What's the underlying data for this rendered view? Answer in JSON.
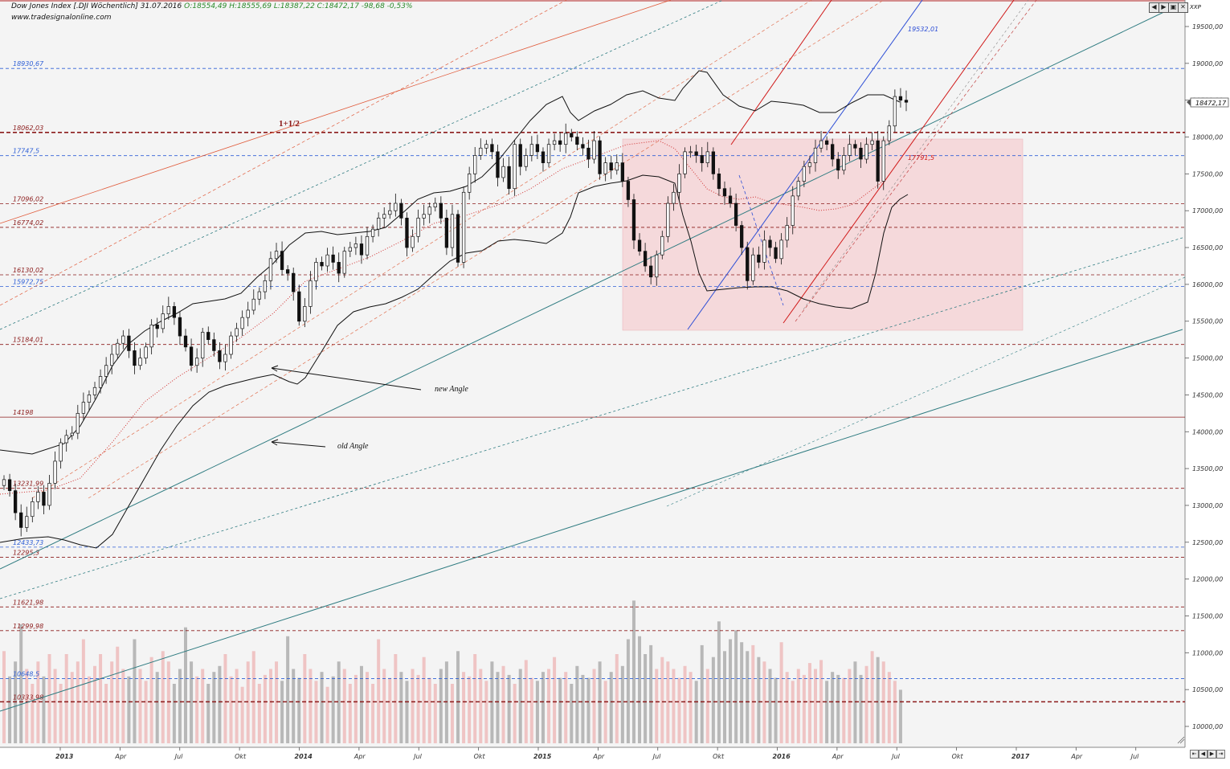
{
  "header": {
    "instrument": "Dow Jones Index [.DJI Wöchentlich] 31.07.2016",
    "ohlc": "O:18554,49 H:18555,69 L:18387,22 C:18472,17 -98,68 -0,53%",
    "website": "www.tradesignalonline.com"
  },
  "window_controls": [
    "◀",
    "▶",
    "▣",
    "✕"
  ],
  "nav_controls": [
    "⇤",
    "◀",
    "▶",
    "⇥"
  ],
  "axis": {
    "currency_label": "XXP",
    "last_price_label": "18472,17"
  },
  "annotations": {
    "fib_label": "1+1/2",
    "new_angle": "new Angle",
    "old_angle": "old Angle",
    "target_blue": "19532,01",
    "target_red": "17791,5"
  },
  "colors": {
    "background": "#f4f4f4",
    "blue_level": "#2e5fd6",
    "red_level": "#8b1a1a",
    "rect_fill": "#f5d0d3",
    "trend_teal": "#2e7b80",
    "volume_gray": "#b8b8b8",
    "volume_pink": "#efc4c4",
    "candle": "#111111"
  },
  "chart_data": {
    "type": "candlestick",
    "title": "Dow Jones Index [.DJI Wöchentlich] 31.07.2016",
    "ylim": [
      9700,
      19950
    ],
    "y_ticks": [
      10000,
      10500,
      11000,
      11500,
      12000,
      12500,
      13000,
      13500,
      14000,
      14500,
      15000,
      15500,
      16000,
      16500,
      17000,
      17500,
      18000,
      18500,
      19000,
      19500
    ],
    "y_tick_labels": [
      "10000,00",
      "10500,00",
      "11000,00",
      "11500,00",
      "12000,00",
      "12500,00",
      "13000,00",
      "13500,00",
      "14000,00",
      "14500,00",
      "15000,00",
      "15500,00",
      "16000,00",
      "16500,00",
      "17000,00",
      "17500,00",
      "18000,00",
      "18500,00",
      "19000,00",
      "19500,00"
    ],
    "x_labels": [
      {
        "label": "2013",
        "date": "2013-01"
      },
      {
        "label": "Apr",
        "date": "2013-04"
      },
      {
        "label": "Jul",
        "date": "2013-07"
      },
      {
        "label": "Okt",
        "date": "2013-10"
      },
      {
        "label": "2014",
        "date": "2014-01"
      },
      {
        "label": "Apr",
        "date": "2014-04"
      },
      {
        "label": "Jul",
        "date": "2014-07"
      },
      {
        "label": "Okt",
        "date": "2014-10"
      },
      {
        "label": "2015",
        "date": "2015-01"
      },
      {
        "label": "Apr",
        "date": "2015-04"
      },
      {
        "label": "Jul",
        "date": "2015-07"
      },
      {
        "label": "Okt",
        "date": "2015-10"
      },
      {
        "label": "2016",
        "date": "2016-01"
      },
      {
        "label": "Apr",
        "date": "2016-04"
      },
      {
        "label": "Jul",
        "date": "2016-07"
      },
      {
        "label": "Okt",
        "date": "2016-10"
      },
      {
        "label": "2017",
        "date": "2017-01"
      },
      {
        "label": "Apr",
        "date": "2017-04"
      },
      {
        "label": "Jul",
        "date": "2017-07"
      }
    ],
    "horizontal_levels": [
      {
        "value": 18930.67,
        "label": "18930,67",
        "color": "blue",
        "style": "dashed"
      },
      {
        "value": 18062.03,
        "label": "18062,03",
        "color": "darkred",
        "style": "dashed-bold"
      },
      {
        "value": 17747.5,
        "label": "17747,5",
        "color": "blue",
        "style": "dashed"
      },
      {
        "value": 17096.02,
        "label": "17096,02",
        "color": "darkred",
        "style": "dashed"
      },
      {
        "value": 16774.02,
        "label": "16774,02",
        "color": "darkred",
        "style": "dashed"
      },
      {
        "value": 16130.02,
        "label": "16130,02",
        "color": "darkred",
        "style": "dashed"
      },
      {
        "value": 15972.75,
        "label": "15972,75",
        "color": "blue",
        "style": "dashed"
      },
      {
        "value": 15184.01,
        "label": "15184,01",
        "color": "darkred",
        "style": "dashed"
      },
      {
        "value": 14198,
        "label": "14198",
        "color": "darkred",
        "style": "solid"
      },
      {
        "value": 13231.99,
        "label": "13231,99",
        "color": "darkred",
        "style": "dashed"
      },
      {
        "value": 12433.73,
        "label": "12433,73",
        "color": "blue",
        "style": "dashed"
      },
      {
        "value": 12295.3,
        "label": "12295,3",
        "color": "darkred",
        "style": "dashed"
      },
      {
        "value": 11621.98,
        "label": "11621,98",
        "color": "darkred",
        "style": "dashed"
      },
      {
        "value": 11299.98,
        "label": "11299,98",
        "color": "darkred",
        "style": "dashed"
      },
      {
        "value": 10648.5,
        "label": "10648,5",
        "color": "blue",
        "style": "dashed"
      },
      {
        "value": 10333.98,
        "label": "10333,98",
        "color": "darkred",
        "style": "dashed-bold"
      }
    ],
    "series": [
      {
        "name": "weekly close",
        "values": [
          13350,
          13200,
          12900,
          12700,
          12850,
          13050,
          13180,
          13000,
          13300,
          13600,
          13850,
          13950,
          13980,
          14250,
          14400,
          14500,
          14600,
          14750,
          14900,
          15050,
          15200,
          15300,
          15100,
          14900,
          15000,
          15150,
          15450,
          15400,
          15600,
          15700,
          15550,
          15300,
          15150,
          14900,
          15000,
          15350,
          15250,
          15100,
          14950,
          15050,
          15300,
          15400,
          15550,
          15650,
          15800,
          15900,
          16050,
          16350,
          16450,
          16200,
          16150,
          15900,
          15500,
          15700,
          16050,
          16300,
          16250,
          16400,
          16300,
          16150,
          16450,
          16500,
          16550,
          16400,
          16650,
          16750,
          16900,
          16950,
          17000,
          17100,
          16900,
          16500,
          16650,
          16900,
          16950,
          17050,
          17100,
          16900,
          16500,
          16950,
          16300,
          17250,
          17500,
          17750,
          17850,
          17900,
          17800,
          17450,
          17600,
          17300,
          17900,
          17600,
          17750,
          17900,
          17800,
          17650,
          17900,
          17950,
          17900,
          18050,
          18000,
          17900,
          17850,
          17700,
          17950,
          17500,
          17650,
          17550,
          17650,
          17400,
          17150,
          16600,
          16450,
          16250,
          16100,
          16400,
          16650,
          17100,
          17250,
          17500,
          17800,
          17800,
          17750,
          17650,
          17800,
          17500,
          17300,
          17200,
          17100,
          16800,
          16500,
          16050,
          16400,
          16300,
          16600,
          16500,
          16350,
          16600,
          16800,
          17200,
          17400,
          17600,
          17650,
          17850,
          17950,
          17900,
          17700,
          17550,
          17750,
          17900,
          17850,
          17700,
          17900,
          17950,
          17400,
          17950,
          18150,
          18550,
          18500,
          18472
        ]
      }
    ],
    "volume_scale": "relative",
    "volume_values": [
      0.62,
      0.45,
      0.55,
      0.8,
      0.5,
      0.4,
      0.55,
      0.45,
      0.6,
      0.5,
      0.4,
      0.6,
      0.48,
      0.55,
      0.7,
      0.45,
      0.52,
      0.6,
      0.4,
      0.55,
      0.65,
      0.5,
      0.45,
      0.7,
      0.5,
      0.42,
      0.58,
      0.48,
      0.62,
      0.55,
      0.4,
      0.5,
      0.78,
      0.55,
      0.45,
      0.5,
      0.4,
      0.48,
      0.52,
      0.6,
      0.45,
      0.5,
      0.38,
      0.55,
      0.62,
      0.4,
      0.46,
      0.5,
      0.55,
      0.42,
      0.72,
      0.5,
      0.44,
      0.6,
      0.5,
      0.42,
      0.48,
      0.38,
      0.45,
      0.55,
      0.5,
      0.4,
      0.46,
      0.52,
      0.48,
      0.4,
      0.7,
      0.5,
      0.44,
      0.6,
      0.48,
      0.42,
      0.5,
      0.46,
      0.58,
      0.44,
      0.4,
      0.5,
      0.55,
      0.4,
      0.62,
      0.48,
      0.45,
      0.6,
      0.5,
      0.42,
      0.55,
      0.48,
      0.52,
      0.46,
      0.4,
      0.5,
      0.56,
      0.44,
      0.42,
      0.48,
      0.5,
      0.58,
      0.44,
      0.48,
      0.4,
      0.52,
      0.46,
      0.44,
      0.5,
      0.55,
      0.42,
      0.48,
      0.6,
      0.52,
      0.7,
      0.96,
      0.72,
      0.6,
      0.66,
      0.5,
      0.58,
      0.55,
      0.5,
      0.44,
      0.52,
      0.48,
      0.42,
      0.66,
      0.5,
      0.58,
      0.82,
      0.62,
      0.7,
      0.76,
      0.68,
      0.62,
      0.66,
      0.58,
      0.55,
      0.5,
      0.44,
      0.68,
      0.48,
      0.42,
      0.5,
      0.46,
      0.54,
      0.5,
      0.56,
      0.42,
      0.48,
      0.46,
      0.44,
      0.5,
      0.55,
      0.46,
      0.52,
      0.62,
      0.58,
      0.55,
      0.48,
      0.42,
      0.36
    ]
  }
}
